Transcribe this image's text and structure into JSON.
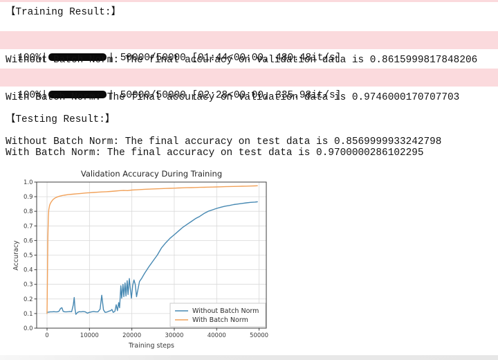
{
  "page": {
    "stripe_color": "#fbdadd",
    "background": "#ffffff"
  },
  "training_section": {
    "header": "【Training Result:】",
    "progress_bars": [
      {
        "percent": "100%|",
        "bar_icon": "tqdm-solid-bar",
        "suffix": "| 50000/50000 [01:44<00:00, 480.48it/s]"
      },
      {
        "percent": "100%|",
        "bar_icon": "tqdm-solid-bar",
        "suffix": "| 50000/50000 [02:28<00:00, 335.98it/s]"
      }
    ],
    "lines": [
      "Without Batch Norm: The final accuracy on validation data is 0.8615999817848206",
      "With Batch Norm: The final accuracy on validation data is 0.9746000170707703"
    ]
  },
  "testing_section": {
    "header": "【Testing Result:】",
    "lines": [
      "Without Batch Norm: The final accuracy on test data is 0.8569999933242798",
      "With Batch Norm: The final accuracy on test data is 0.9700000286102295"
    ]
  },
  "chart_data": {
    "type": "line",
    "title": "Validation Accuracy During Training",
    "xlabel": "Training steps",
    "ylabel": "Accuracy",
    "xlim": [
      -2450,
      51700
    ],
    "ylim": [
      0.0,
      1.0
    ],
    "xtick_values": [
      0,
      10000,
      20000,
      30000,
      40000,
      50000
    ],
    "xtick_labels": [
      "0",
      "10000",
      "20000",
      "30000",
      "40000",
      "50000"
    ],
    "ytick_values": [
      0.0,
      0.1,
      0.2,
      0.3,
      0.4,
      0.5,
      0.6,
      0.7,
      0.8,
      0.9,
      1.0
    ],
    "ytick_labels": [
      "0.0",
      "0.1",
      "0.2",
      "0.3",
      "0.4",
      "0.5",
      "0.6",
      "0.7",
      "0.8",
      "0.9",
      "1.0"
    ],
    "grid": true,
    "grid_color": "#d9d9d9",
    "spine_color": "#3c3c3c",
    "legend_position": "lower right",
    "legend_border_color": "#cbcbcb",
    "series": [
      {
        "name": "Without Batch Norm",
        "color": "#4688b2",
        "points": [
          [
            0,
            0.108
          ],
          [
            400,
            0.11
          ],
          [
            800,
            0.112
          ],
          [
            1200,
            0.112
          ],
          [
            1600,
            0.113
          ],
          [
            2000,
            0.112
          ],
          [
            2400,
            0.112
          ],
          [
            2800,
            0.115
          ],
          [
            3200,
            0.135
          ],
          [
            3500,
            0.14
          ],
          [
            3800,
            0.115
          ],
          [
            4200,
            0.112
          ],
          [
            4600,
            0.112
          ],
          [
            5000,
            0.113
          ],
          [
            5400,
            0.114
          ],
          [
            5800,
            0.113
          ],
          [
            6200,
            0.16
          ],
          [
            6400,
            0.21
          ],
          [
            6600,
            0.13
          ],
          [
            6800,
            0.095
          ],
          [
            7200,
            0.108
          ],
          [
            7600,
            0.113
          ],
          [
            8000,
            0.112
          ],
          [
            8500,
            0.114
          ],
          [
            9000,
            0.112
          ],
          [
            9500,
            0.103
          ],
          [
            10000,
            0.108
          ],
          [
            10500,
            0.112
          ],
          [
            11000,
            0.114
          ],
          [
            11500,
            0.112
          ],
          [
            12000,
            0.112
          ],
          [
            12500,
            0.13
          ],
          [
            12900,
            0.225
          ],
          [
            13300,
            0.125
          ],
          [
            13700,
            0.108
          ],
          [
            14100,
            0.11
          ],
          [
            14500,
            0.115
          ],
          [
            15000,
            0.12
          ],
          [
            15300,
            0.128
          ],
          [
            15600,
            0.108
          ],
          [
            16000,
            0.115
          ],
          [
            16300,
            0.16
          ],
          [
            16600,
            0.12
          ],
          [
            16900,
            0.175
          ],
          [
            17100,
            0.14
          ],
          [
            17400,
            0.29
          ],
          [
            17600,
            0.205
          ],
          [
            17900,
            0.3
          ],
          [
            18100,
            0.215
          ],
          [
            18400,
            0.31
          ],
          [
            18600,
            0.22
          ],
          [
            18900,
            0.325
          ],
          [
            19100,
            0.23
          ],
          [
            19400,
            0.34
          ],
          [
            19600,
            0.28
          ],
          [
            19900,
            0.205
          ],
          [
            20200,
            0.295
          ],
          [
            20500,
            0.33
          ],
          [
            20800,
            0.3
          ],
          [
            21100,
            0.215
          ],
          [
            21400,
            0.26
          ],
          [
            21800,
            0.32
          ],
          [
            22300,
            0.34
          ],
          [
            23000,
            0.375
          ],
          [
            24000,
            0.42
          ],
          [
            25000,
            0.46
          ],
          [
            26000,
            0.5
          ],
          [
            27000,
            0.55
          ],
          [
            28000,
            0.585
          ],
          [
            29000,
            0.615
          ],
          [
            30000,
            0.64
          ],
          [
            31000,
            0.665
          ],
          [
            32000,
            0.69
          ],
          [
            33000,
            0.71
          ],
          [
            34000,
            0.73
          ],
          [
            35000,
            0.75
          ],
          [
            36000,
            0.765
          ],
          [
            37000,
            0.785
          ],
          [
            38000,
            0.8
          ],
          [
            39000,
            0.81
          ],
          [
            40000,
            0.82
          ],
          [
            41000,
            0.828
          ],
          [
            42000,
            0.835
          ],
          [
            43000,
            0.84
          ],
          [
            44000,
            0.846
          ],
          [
            45000,
            0.85
          ],
          [
            46000,
            0.854
          ],
          [
            47000,
            0.858
          ],
          [
            48000,
            0.861
          ],
          [
            49000,
            0.863
          ],
          [
            49600,
            0.865
          ]
        ]
      },
      {
        "name": "With Batch Norm",
        "color": "#f1a159",
        "points": [
          [
            0,
            0.1
          ],
          [
            100,
            0.35
          ],
          [
            200,
            0.62
          ],
          [
            300,
            0.76
          ],
          [
            400,
            0.81
          ],
          [
            600,
            0.84
          ],
          [
            800,
            0.855
          ],
          [
            1000,
            0.865
          ],
          [
            1300,
            0.877
          ],
          [
            1600,
            0.885
          ],
          [
            2000,
            0.893
          ],
          [
            2500,
            0.899
          ],
          [
            3000,
            0.904
          ],
          [
            3500,
            0.907
          ],
          [
            4000,
            0.91
          ],
          [
            5000,
            0.914
          ],
          [
            6000,
            0.917
          ],
          [
            7000,
            0.92
          ],
          [
            8000,
            0.9225
          ],
          [
            9000,
            0.925
          ],
          [
            10000,
            0.927
          ],
          [
            11000,
            0.929
          ],
          [
            12000,
            0.931
          ],
          [
            13000,
            0.9325
          ],
          [
            14000,
            0.934
          ],
          [
            15000,
            0.936
          ],
          [
            16000,
            0.9385
          ],
          [
            17000,
            0.941
          ],
          [
            18000,
            0.9425
          ],
          [
            19000,
            0.9415
          ],
          [
            20000,
            0.9455
          ],
          [
            21000,
            0.947
          ],
          [
            22000,
            0.949
          ],
          [
            23000,
            0.9505
          ],
          [
            24000,
            0.9515
          ],
          [
            25000,
            0.953
          ],
          [
            26000,
            0.954
          ],
          [
            27000,
            0.9555
          ],
          [
            28000,
            0.9565
          ],
          [
            29000,
            0.9575
          ],
          [
            30000,
            0.9585
          ],
          [
            31000,
            0.9595
          ],
          [
            32000,
            0.9605
          ],
          [
            33000,
            0.9615
          ],
          [
            34000,
            0.962
          ],
          [
            35000,
            0.963
          ],
          [
            36000,
            0.964
          ],
          [
            37000,
            0.9645
          ],
          [
            38000,
            0.9655
          ],
          [
            39000,
            0.966
          ],
          [
            40000,
            0.967
          ],
          [
            41000,
            0.968
          ],
          [
            42000,
            0.9685
          ],
          [
            43000,
            0.9695
          ],
          [
            44000,
            0.97
          ],
          [
            45000,
            0.9705
          ],
          [
            46000,
            0.9715
          ],
          [
            47000,
            0.972
          ],
          [
            48000,
            0.973
          ],
          [
            49000,
            0.974
          ],
          [
            49600,
            0.975
          ]
        ]
      }
    ]
  }
}
